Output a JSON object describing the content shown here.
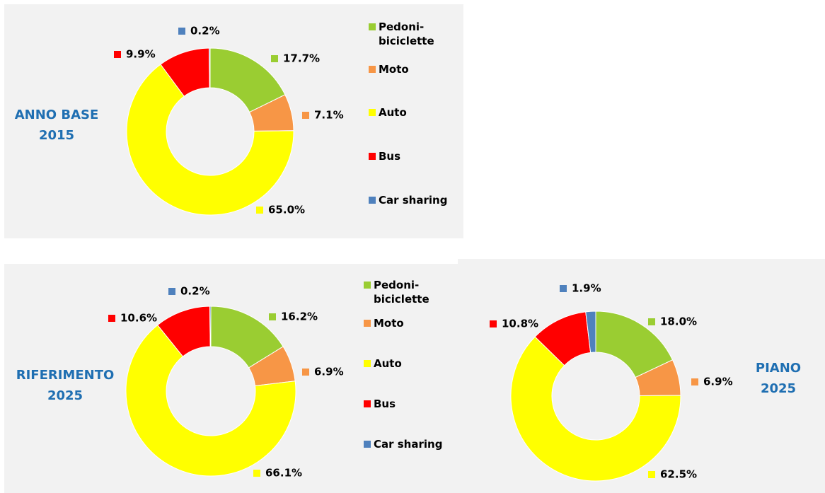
{
  "chart_data": [
    {
      "type": "pie",
      "title": "ANNO BASE 2015",
      "legend": true,
      "categories": [
        "Pedoni-biciclette",
        "Moto",
        "Auto",
        "Bus",
        "Car sharing"
      ],
      "colors": [
        "#9acd32",
        "#f79646",
        "#ffff00",
        "#ff0000",
        "#4f81bd"
      ],
      "values": [
        17.7,
        7.1,
        65.0,
        9.9,
        0.2
      ],
      "value_labels": [
        "17.7%",
        "7.1%",
        "65.0%",
        "9.9%",
        "0.2%"
      ]
    },
    {
      "type": "pie",
      "title": "RIFERIMENTO 2025",
      "legend": true,
      "categories": [
        "Pedoni-biciclette",
        "Moto",
        "Auto",
        "Bus",
        "Car sharing"
      ],
      "colors": [
        "#9acd32",
        "#f79646",
        "#ffff00",
        "#ff0000",
        "#4f81bd"
      ],
      "values": [
        16.2,
        6.9,
        66.1,
        10.6,
        0.2
      ],
      "value_labels": [
        "16.2%",
        "6.9%",
        "66.1%",
        "10.6%",
        "0.2%"
      ]
    },
    {
      "type": "pie",
      "title": "PIANO 2025",
      "legend": false,
      "categories": [
        "Pedoni-biciclette",
        "Moto",
        "Auto",
        "Bus",
        "Car sharing"
      ],
      "colors": [
        "#9acd32",
        "#f79646",
        "#ffff00",
        "#ff0000",
        "#4f81bd"
      ],
      "values": [
        18.0,
        6.9,
        62.5,
        10.8,
        1.9
      ],
      "value_labels": [
        "18.0%",
        "6.9%",
        "62.5%",
        "10.8%",
        "1.9%"
      ]
    }
  ]
}
